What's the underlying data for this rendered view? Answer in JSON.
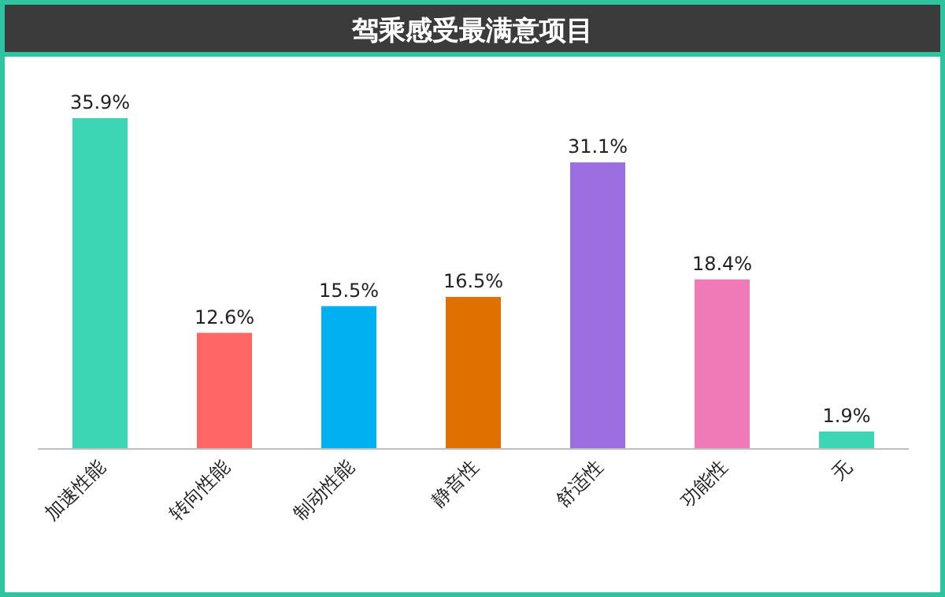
{
  "chart_data": {
    "type": "bar",
    "title": "驾乘感受最满意项目",
    "categories": [
      "加速性能",
      "转向性能",
      "制动性能",
      "静音性",
      "舒适性",
      "功能性",
      "无"
    ],
    "values": [
      35.9,
      12.6,
      15.5,
      16.5,
      31.1,
      18.4,
      1.9
    ],
    "value_labels": [
      "35.9%",
      "12.6%",
      "15.5%",
      "16.5%",
      "31.1%",
      "18.4%",
      "1.9%"
    ],
    "colors": [
      "#3dd6b5",
      "#ff6666",
      "#00b0f0",
      "#e07000",
      "#9b6fe0",
      "#f07ab8",
      "#3dd6b5"
    ]
  }
}
